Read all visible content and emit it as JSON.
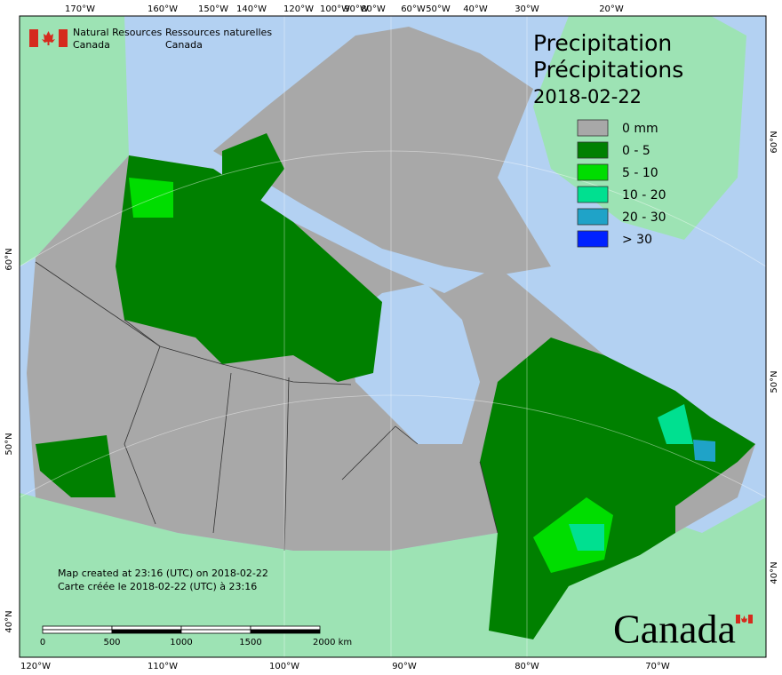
{
  "agency": {
    "english": [
      "Natural Resources",
      "Canada"
    ],
    "french": [
      "Ressources naturelles",
      "Canada"
    ]
  },
  "title": {
    "lines": [
      "Precipitation",
      "Précipitations"
    ],
    "date": "2018-02-22"
  },
  "legend": {
    "items": [
      {
        "label": "0 mm",
        "color": "#a8a8a8"
      },
      {
        "label": "0 - 5",
        "color": "#008000"
      },
      {
        "label": "5 - 10",
        "color": "#00dd00"
      },
      {
        "label": "10 - 20",
        "color": "#00e090"
      },
      {
        "label": "20 - 30",
        "color": "#1fa3c8"
      },
      {
        "label": "> 30",
        "color": "#0022ff"
      }
    ]
  },
  "notes": [
    "Map created at 23:16 (UTC) on 2018-02-22",
    "Carte créée le 2018-02-22 (UTC) à 23:16"
  ],
  "scale_bar": {
    "labels": [
      "0",
      "500",
      "1000",
      "1500",
      "2000 km"
    ]
  },
  "graticule": {
    "top": [
      "170°W",
      "160°W",
      "150°W",
      "140°W",
      "120°W",
      "100°W",
      "90°W",
      "80°W",
      "60°W",
      "50°W",
      "40°W",
      "30°W",
      "20°W"
    ],
    "bottom": [
      "120°W",
      "110°W",
      "100°W",
      "90°W",
      "80°W",
      "70°W"
    ],
    "left": [
      "60°N",
      "50°N",
      "40°N"
    ],
    "right": [
      "60°N",
      "50°N",
      "40°N"
    ]
  },
  "wordmark": "Canada"
}
